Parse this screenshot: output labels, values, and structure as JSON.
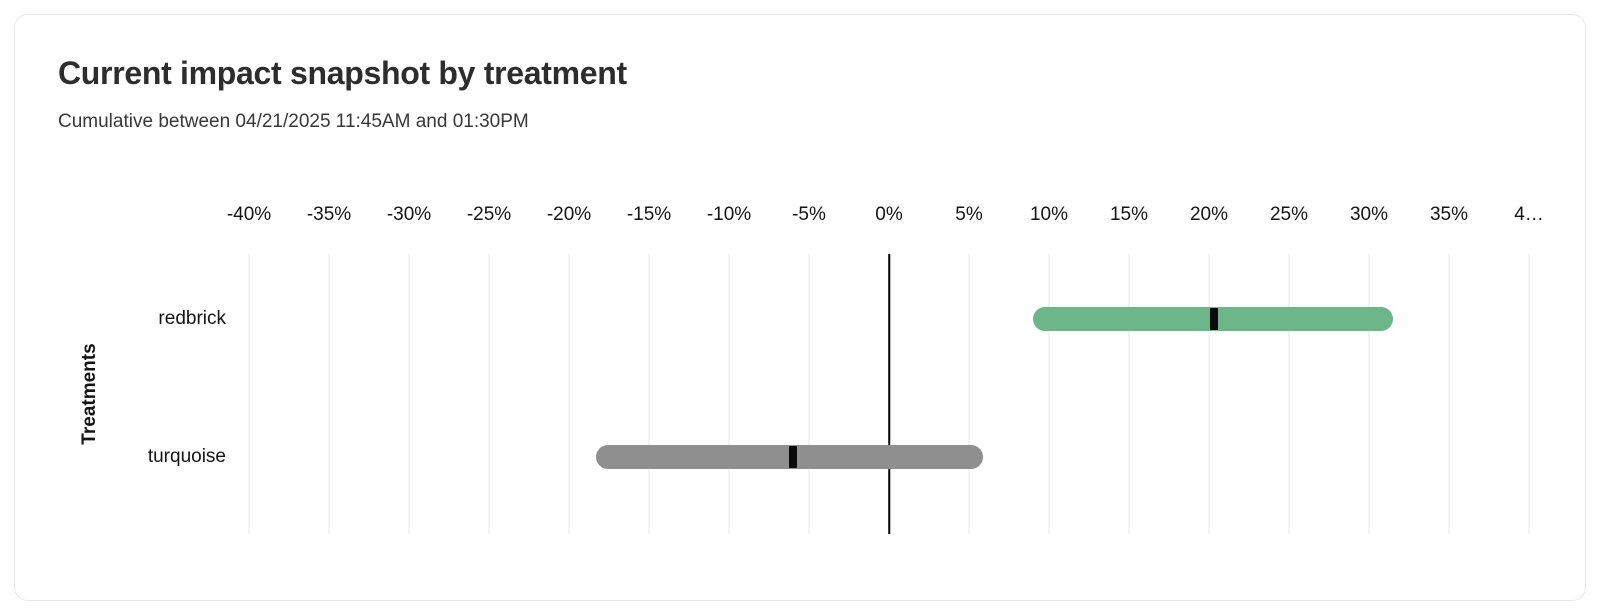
{
  "chart_data": {
    "type": "bar",
    "subtype": "horizontal-range-bar",
    "title": "Current impact snapshot by treatment",
    "subtitle": "Cumulative between 04/21/2025 11:45AM and 01:30PM",
    "y_axis_title": "Treatments",
    "x_axis": {
      "min": -40,
      "max": 40,
      "tick_step": 5,
      "unit": "%",
      "tick_labels": [
        "-40%",
        "-35%",
        "-30%",
        "-25%",
        "-20%",
        "-15%",
        "-10%",
        "-5%",
        "0%",
        "5%",
        "10%",
        "15%",
        "20%",
        "25%",
        "30%",
        "35%",
        "4…"
      ],
      "zero_line": true,
      "grid": true
    },
    "categories": [
      "redbrick",
      "turquoise"
    ],
    "series": [
      {
        "name": "redbrick",
        "low": 9.0,
        "high": 31.5,
        "point": 20.3,
        "color": "#6cb68a"
      },
      {
        "name": "turquoise",
        "low": -18.3,
        "high": 5.9,
        "point": -6.0,
        "color": "#8f8f8f"
      }
    ],
    "marker_color": "#0a0a0a",
    "colors": {
      "gridline": "#e7e7e7",
      "zero_line": "#000000",
      "card_border": "#e8e8e8",
      "text": "#2d2d2d"
    },
    "legend": "none"
  }
}
